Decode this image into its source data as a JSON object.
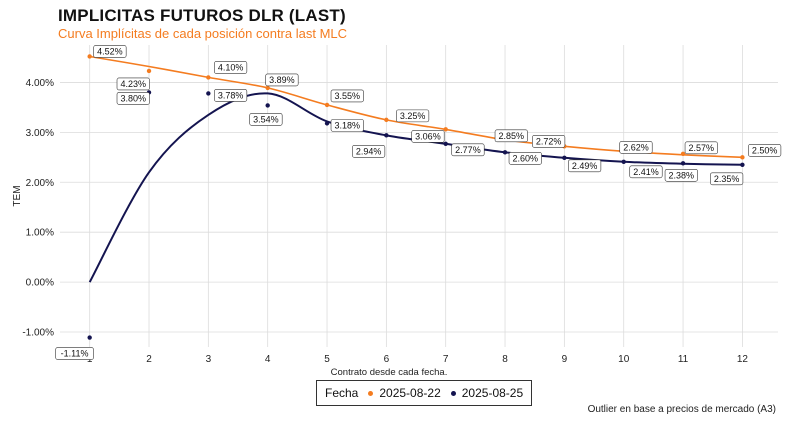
{
  "header": {
    "title": "IMPLICITAS FUTUROS DLR (LAST)",
    "subtitle": "Curva Implícitas de cada posición contra last MLC"
  },
  "caption": "Outlier en base a precios de mercado (A3)",
  "colors": {
    "orange": "#f47c20",
    "navy": "#141450",
    "grid": "#dcdcdc"
  },
  "chart_data": {
    "type": "line",
    "title": "IMPLICITAS FUTUROS DLR (LAST)",
    "subtitle": "Curva Implícitas de cada posición contra last MLC",
    "xlabel": "Contrato desde cada fecha.",
    "ylabel": "TEM",
    "x": [
      1,
      2,
      3,
      4,
      5,
      6,
      7,
      8,
      9,
      10,
      11,
      12
    ],
    "xlim": [
      0.5,
      12.6
    ],
    "ylim": [
      -1.3,
      4.75
    ],
    "yticks": [
      -1,
      0,
      1,
      2,
      3,
      4
    ],
    "ytick_labels": [
      "-1.00%",
      "0.00%",
      "1.00%",
      "2.00%",
      "3.00%",
      "4.00%"
    ],
    "legend_title": "Fecha",
    "legend_position": "bottom",
    "series": [
      {
        "name": "2025-08-22",
        "color": "#f47c20",
        "values": [
          4.52,
          4.23,
          4.1,
          3.89,
          3.55,
          3.25,
          3.06,
          2.85,
          2.72,
          2.62,
          2.57,
          2.5
        ],
        "labels": [
          "4.52%",
          "4.23%",
          "4.10%",
          "3.89%",
          "3.55%",
          "3.25%",
          "3.06%",
          "2.85%",
          "2.72%",
          "2.62%",
          "2.57%",
          "2.50%"
        ],
        "smooth": [
          4.52,
          4.32,
          4.1,
          3.89,
          3.55,
          3.25,
          3.06,
          2.85,
          2.72,
          2.62,
          2.55,
          2.5
        ]
      },
      {
        "name": "2025-08-25",
        "color": "#141450",
        "values": [
          -1.11,
          3.8,
          3.78,
          3.54,
          3.18,
          2.94,
          2.77,
          2.6,
          2.49,
          2.41,
          2.38,
          2.35
        ],
        "labels": [
          "-1.11%",
          "3.80%",
          "3.78%",
          "3.54%",
          "3.18%",
          "2.94%",
          "2.77%",
          "2.60%",
          "2.49%",
          "2.41%",
          "2.38%",
          "2.35%"
        ],
        "smooth": [
          0.0,
          2.2,
          3.35,
          3.78,
          3.22,
          2.94,
          2.77,
          2.6,
          2.49,
          2.41,
          2.37,
          2.35
        ]
      }
    ]
  }
}
